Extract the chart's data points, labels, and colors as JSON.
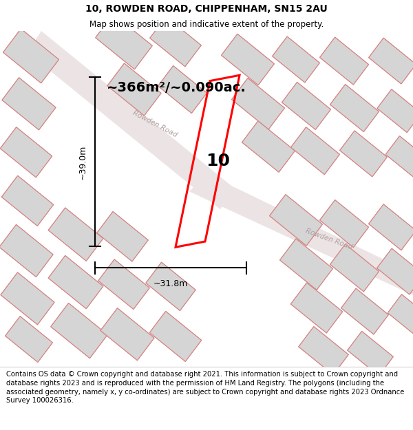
{
  "title": "10, ROWDEN ROAD, CHIPPENHAM, SN15 2AU",
  "subtitle": "Map shows position and indicative extent of the property.",
  "footer": "Contains OS data © Crown copyright and database right 2021. This information is subject to Crown copyright and database rights 2023 and is reproduced with the permission of HM Land Registry. The polygons (including the associated geometry, namely x, y co-ordinates) are subject to Crown copyright and database rights 2023 Ordnance Survey 100026316.",
  "area_label": "~366m²/~0.090ac.",
  "number_label": "10",
  "dim_width": "~31.8m",
  "dim_height": "~39.0m",
  "road_label_upper": "Rowden Road",
  "road_label_lower": "Rowden Road",
  "plot_color": "#ff0000",
  "building_fc": "#d5d5d5",
  "building_ec": "#b0b0b0",
  "pink_ec": "#e08080",
  "road_fc": "#ece4e4",
  "map_bg": "#faf8f8",
  "title_fontsize": 10,
  "subtitle_fontsize": 8.5,
  "footer_fontsize": 7.2,
  "area_fontsize": 14,
  "dim_fontsize": 9,
  "label_fontsize": 18,
  "road_fontsize": 7.5
}
